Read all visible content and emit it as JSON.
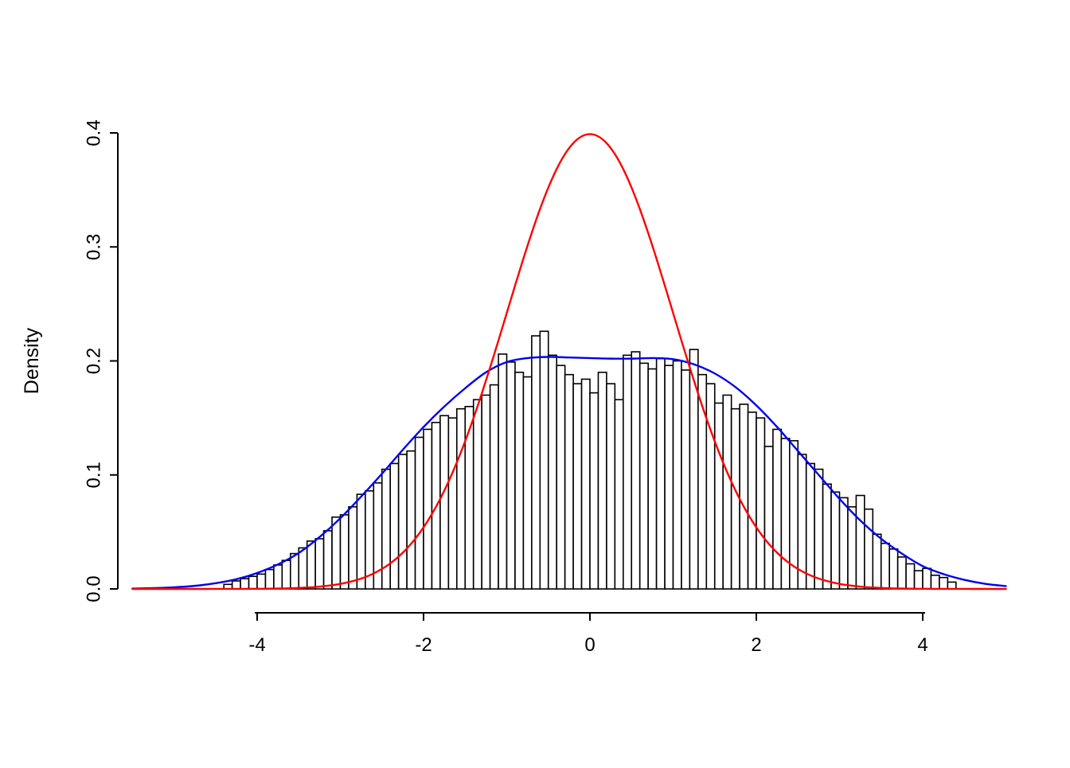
{
  "figure": {
    "background": "#FFFFFF",
    "axis_color": "#000000",
    "text_color": "#000000"
  },
  "chart_data": {
    "type": "histogram",
    "title": "",
    "xlabel": "",
    "ylabel": "Density",
    "xlim": [
      -5.6,
      5.1
    ],
    "ylim": [
      0,
      0.4
    ],
    "grid": false,
    "legend": "none",
    "x_ticks": [
      {
        "value": -4,
        "label": "-4"
      },
      {
        "value": -2,
        "label": "-2"
      },
      {
        "value": 0,
        "label": "0"
      },
      {
        "value": 2,
        "label": "2"
      },
      {
        "value": 4,
        "label": "4"
      }
    ],
    "y_ticks": [
      {
        "value": 0.0,
        "label": "0.0"
      },
      {
        "value": 0.1,
        "label": "0.1"
      },
      {
        "value": 0.2,
        "label": "0.2"
      },
      {
        "value": 0.3,
        "label": "0.3"
      },
      {
        "value": 0.4,
        "label": "0.4"
      }
    ],
    "histogram": {
      "bin_start": -4.4,
      "bin_width": 0.1,
      "bar_fill": "#FFFFFF",
      "bar_stroke": "#000000",
      "heights": [
        0.004,
        0.007,
        0.009,
        0.011,
        0.013,
        0.017,
        0.021,
        0.025,
        0.031,
        0.036,
        0.042,
        0.044,
        0.051,
        0.063,
        0.065,
        0.072,
        0.083,
        0.086,
        0.093,
        0.105,
        0.11,
        0.118,
        0.121,
        0.133,
        0.14,
        0.146,
        0.152,
        0.15,
        0.158,
        0.16,
        0.166,
        0.17,
        0.179,
        0.206,
        0.199,
        0.19,
        0.186,
        0.222,
        0.226,
        0.205,
        0.196,
        0.188,
        0.18,
        0.184,
        0.172,
        0.19,
        0.18,
        0.166,
        0.205,
        0.208,
        0.198,
        0.193,
        0.202,
        0.196,
        0.2,
        0.192,
        0.21,
        0.188,
        0.18,
        0.163,
        0.17,
        0.158,
        0.162,
        0.155,
        0.15,
        0.125,
        0.14,
        0.132,
        0.13,
        0.118,
        0.11,
        0.105,
        0.092,
        0.085,
        0.08,
        0.072,
        0.082,
        0.07,
        0.048,
        0.04,
        0.035,
        0.028,
        0.022,
        0.016,
        0.018,
        0.012,
        0.01,
        0.006
      ]
    },
    "curves": [
      {
        "name": "kernel-density-curve",
        "color": "#0000EE",
        "points_x": [
          -5.5,
          -5.25,
          -5,
          -4.75,
          -4.5,
          -4.25,
          -4,
          -3.75,
          -3.5,
          -3.25,
          -3,
          -2.75,
          -2.5,
          -2.25,
          -2,
          -1.75,
          -1.5,
          -1.25,
          -1,
          -0.75,
          -0.5,
          -0.25,
          0,
          0.25,
          0.5,
          0.75,
          1,
          1.25,
          1.5,
          1.75,
          2,
          2.25,
          2.5,
          2.75,
          3,
          3.25,
          3.5,
          3.75,
          4,
          4.25,
          4.5,
          4.75,
          5
        ],
        "points_y": [
          0.0003,
          0.0007,
          0.0014,
          0.0027,
          0.005,
          0.0085,
          0.014,
          0.0215,
          0.0315,
          0.0455,
          0.062,
          0.081,
          0.101,
          0.122,
          0.142,
          0.16,
          0.176,
          0.19,
          0.199,
          0.2025,
          0.2035,
          0.203,
          0.2025,
          0.202,
          0.202,
          0.2025,
          0.2015,
          0.197,
          0.189,
          0.177,
          0.161,
          0.142,
          0.121,
          0.1,
          0.079,
          0.06,
          0.044,
          0.031,
          0.02,
          0.013,
          0.008,
          0.0045,
          0.0025
        ]
      },
      {
        "name": "standard-normal-curve",
        "color": "#FF0000",
        "distribution": "normal",
        "mean": 0,
        "sd": 1,
        "peak": 0.3989,
        "x_range": [
          -5.5,
          5.0
        ]
      }
    ]
  }
}
